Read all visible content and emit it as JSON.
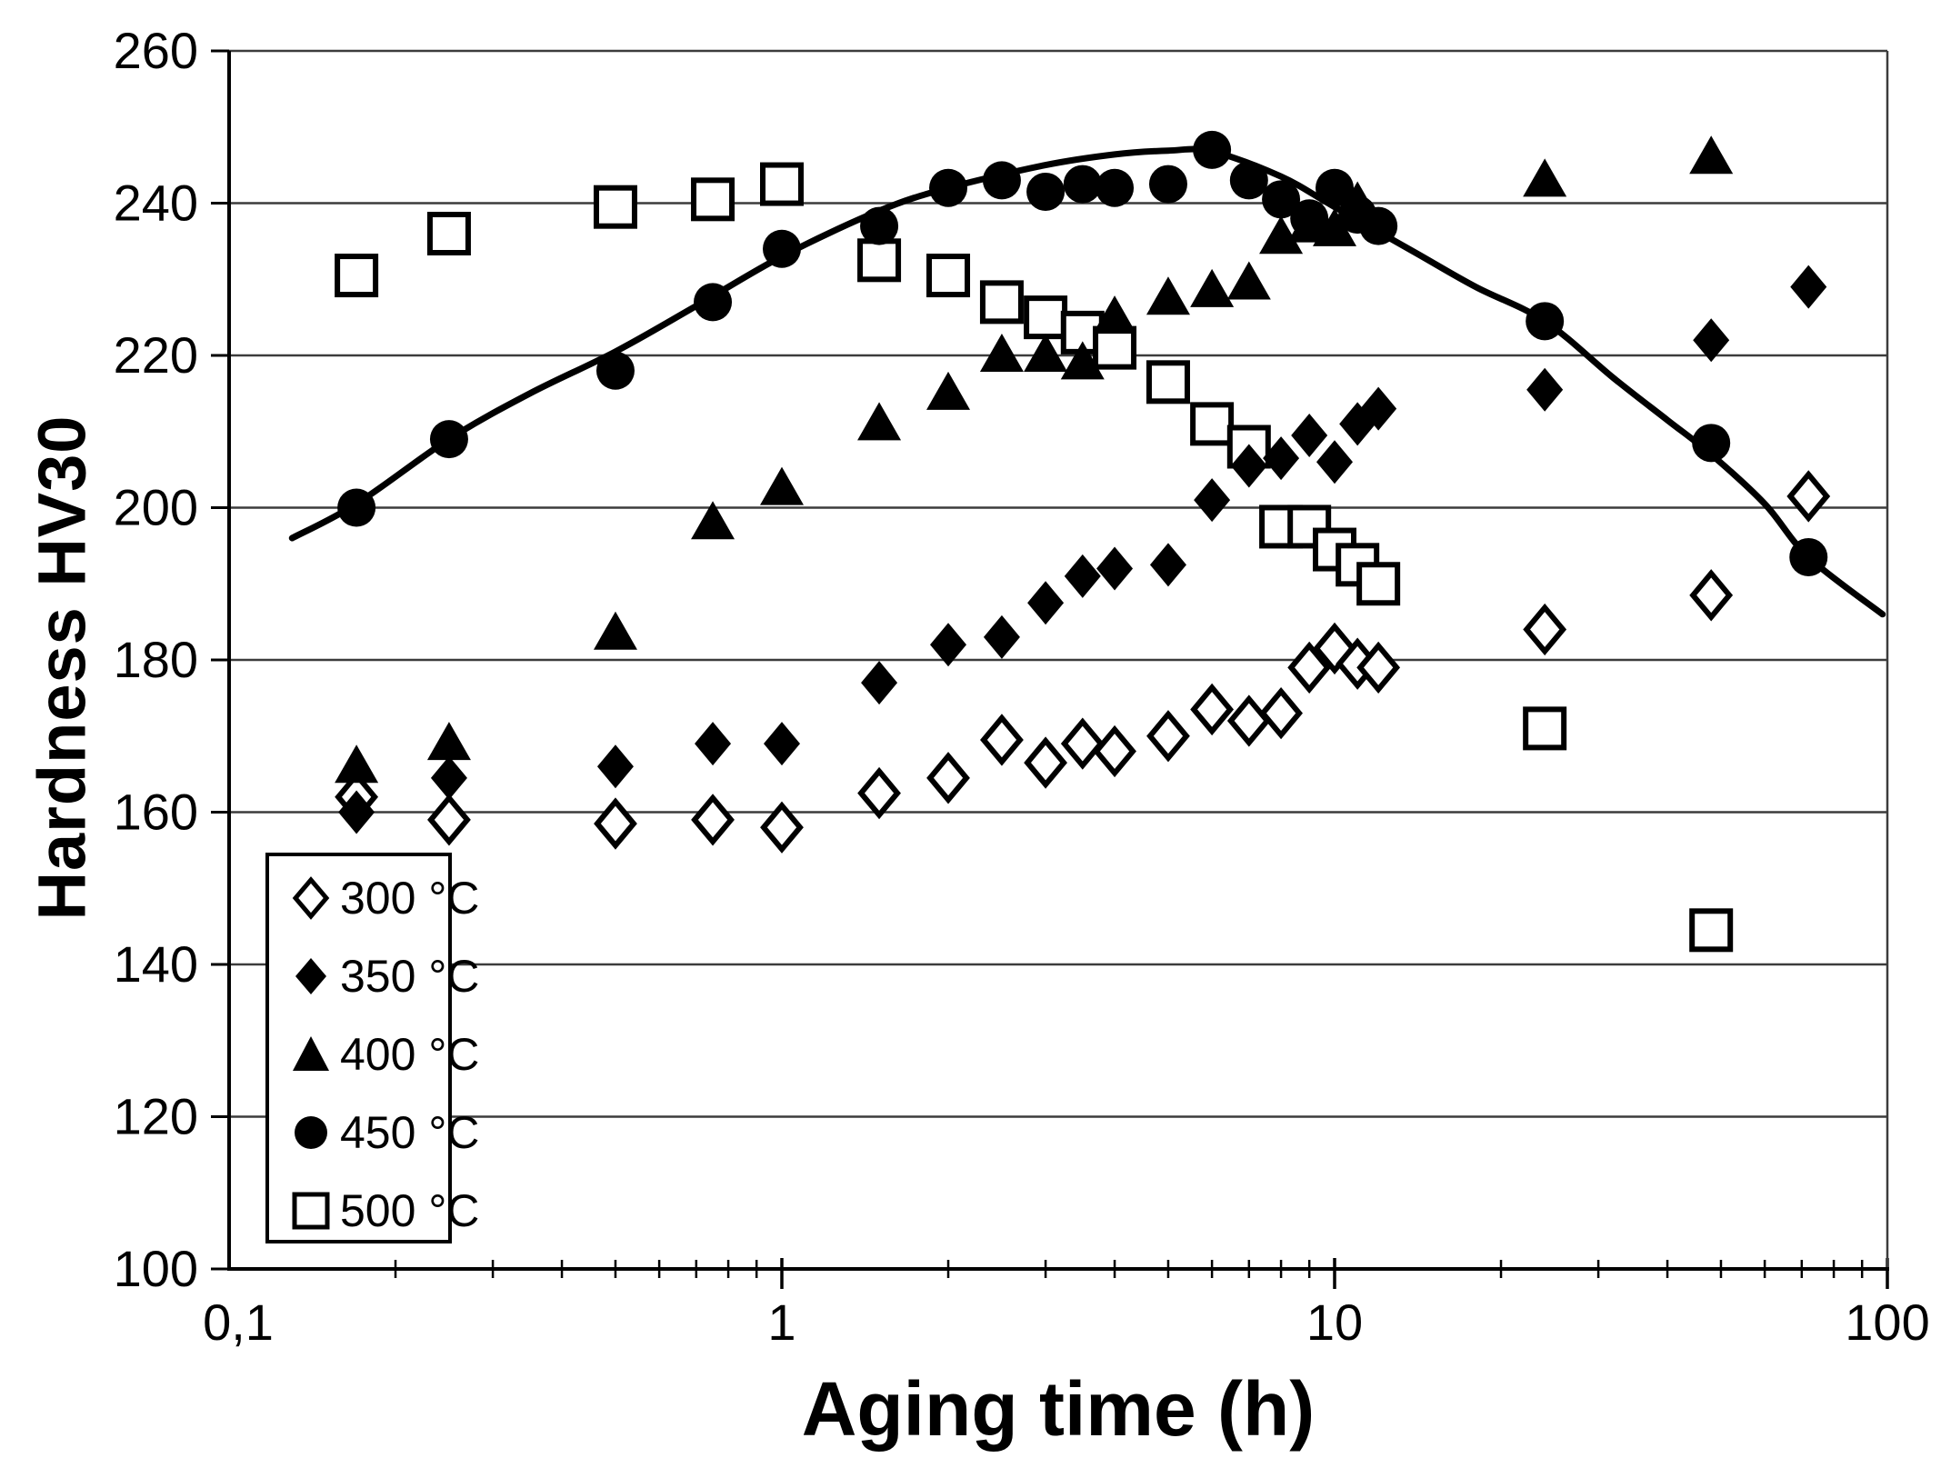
{
  "chart_data": {
    "type": "scatter",
    "title": "",
    "xlabel": "Aging time (h)",
    "ylabel": "Hardness HV30",
    "x_scale": "log",
    "xlim": [
      0.1,
      100
    ],
    "ylim": [
      100,
      260
    ],
    "grid": "horizontal-only",
    "background": "#ffffff",
    "line_color": "#000000",
    "x_tick_labels": [
      {
        "value": 0.1,
        "label": "0,1"
      },
      {
        "value": 1,
        "label": "1"
      },
      {
        "value": 10,
        "label": "10"
      },
      {
        "value": 100,
        "label": "100"
      }
    ],
    "y_ticks": [
      100,
      120,
      140,
      160,
      180,
      200,
      220,
      240,
      260
    ],
    "legend_position": "lower-left",
    "series": [
      {
        "name": "300 °C",
        "marker": "diamond",
        "fill": "open",
        "points": [
          [
            0.17,
            162
          ],
          [
            0.25,
            159
          ],
          [
            0.5,
            158.5
          ],
          [
            0.75,
            159
          ],
          [
            1,
            158
          ],
          [
            1.5,
            162.5
          ],
          [
            2,
            164.5
          ],
          [
            2.5,
            169.5
          ],
          [
            3,
            166.5
          ],
          [
            3.5,
            169
          ],
          [
            4,
            168
          ],
          [
            5,
            170
          ],
          [
            6,
            173.5
          ],
          [
            7,
            172
          ],
          [
            8,
            173
          ],
          [
            9,
            179
          ],
          [
            10,
            181.5
          ],
          [
            11,
            179.5
          ],
          [
            12,
            179
          ],
          [
            24,
            184
          ],
          [
            48,
            188.5
          ],
          [
            72,
            201.5
          ]
        ]
      },
      {
        "name": "350 °C",
        "marker": "diamond",
        "fill": "solid",
        "points": [
          [
            0.17,
            160
          ],
          [
            0.25,
            164.5
          ],
          [
            0.5,
            166
          ],
          [
            0.75,
            169
          ],
          [
            1,
            169
          ],
          [
            1.5,
            177
          ],
          [
            2,
            182
          ],
          [
            2.5,
            183
          ],
          [
            3,
            187.5
          ],
          [
            3.5,
            191
          ],
          [
            4,
            192
          ],
          [
            5,
            192.5
          ],
          [
            6,
            201
          ],
          [
            7,
            205.5
          ],
          [
            8,
            206.5
          ],
          [
            9,
            209.5
          ],
          [
            10,
            206
          ],
          [
            11,
            211
          ],
          [
            12,
            213
          ],
          [
            24,
            215.5
          ],
          [
            48,
            222
          ],
          [
            72,
            229
          ]
        ]
      },
      {
        "name": "400 °C",
        "marker": "triangle",
        "fill": "solid",
        "points": [
          [
            0.17,
            166
          ],
          [
            0.25,
            169
          ],
          [
            0.5,
            183.5
          ],
          [
            0.75,
            198
          ],
          [
            1,
            202.5
          ],
          [
            1.5,
            211
          ],
          [
            2,
            215
          ],
          [
            2.5,
            220
          ],
          [
            3,
            220
          ],
          [
            3.5,
            219
          ],
          [
            4,
            225
          ],
          [
            5,
            227.5
          ],
          [
            6,
            228.5
          ],
          [
            7,
            229.5
          ],
          [
            8,
            235.5
          ],
          [
            9,
            237
          ],
          [
            10,
            236.5
          ],
          [
            11,
            240
          ],
          [
            24,
            243
          ],
          [
            48,
            246
          ]
        ]
      },
      {
        "name": "450 °C",
        "marker": "circle",
        "fill": "solid",
        "points": [
          [
            0.17,
            200
          ],
          [
            0.25,
            209
          ],
          [
            0.5,
            218
          ],
          [
            0.75,
            227
          ],
          [
            1,
            234
          ],
          [
            1.5,
            237
          ],
          [
            2,
            242
          ],
          [
            2.5,
            243
          ],
          [
            3,
            241.5
          ],
          [
            3.5,
            242.5
          ],
          [
            4,
            242
          ],
          [
            5,
            242.5
          ],
          [
            6,
            247
          ],
          [
            7,
            243
          ],
          [
            8,
            240.5
          ],
          [
            9,
            238
          ],
          [
            10,
            242
          ],
          [
            11,
            238.5
          ],
          [
            12,
            237
          ],
          [
            24,
            224.5
          ],
          [
            48,
            208.5
          ],
          [
            72,
            193.5
          ]
        ]
      },
      {
        "name": "500 °C",
        "marker": "square",
        "fill": "open",
        "points": [
          [
            0.17,
            230.5
          ],
          [
            0.25,
            236
          ],
          [
            0.5,
            239.5
          ],
          [
            0.75,
            240.5
          ],
          [
            1,
            242.5
          ],
          [
            1.5,
            232.5
          ],
          [
            2,
            230.5
          ],
          [
            2.5,
            227
          ],
          [
            3,
            225
          ],
          [
            3.5,
            223
          ],
          [
            4,
            221
          ],
          [
            5,
            216.5
          ],
          [
            6,
            211
          ],
          [
            7,
            208
          ],
          [
            8,
            197.5
          ],
          [
            9,
            197.5
          ],
          [
            10,
            194.5
          ],
          [
            11,
            192.5
          ],
          [
            12,
            190
          ],
          [
            24,
            171
          ],
          [
            48,
            144.5
          ]
        ]
      }
    ],
    "fit_curve": {
      "for_series": "450 °C",
      "points": [
        [
          0.13,
          196
        ],
        [
          0.17,
          200.5
        ],
        [
          0.25,
          209
        ],
        [
          0.35,
          215
        ],
        [
          0.5,
          220.5
        ],
        [
          0.7,
          226.5
        ],
        [
          1,
          233
        ],
        [
          1.5,
          239
        ],
        [
          2,
          242
        ],
        [
          3,
          245
        ],
        [
          4,
          246.4
        ],
        [
          5,
          246.9
        ],
        [
          6,
          246.8
        ],
        [
          8,
          243.5
        ],
        [
          10,
          239.5
        ],
        [
          14,
          233.5
        ],
        [
          18,
          229
        ],
        [
          24,
          224.5
        ],
        [
          32,
          217
        ],
        [
          40,
          211.5
        ],
        [
          48,
          207
        ],
        [
          60,
          200.5
        ],
        [
          72,
          193.5
        ],
        [
          98,
          186
        ]
      ]
    }
  }
}
